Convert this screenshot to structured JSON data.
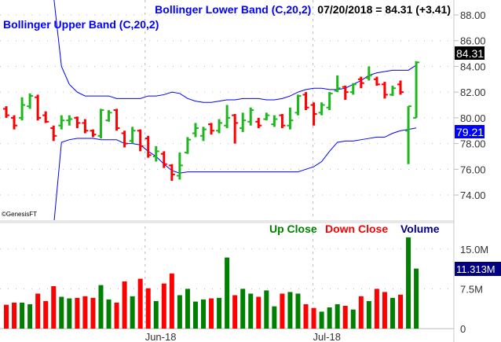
{
  "chart_data": [
    {
      "type": "ohlc",
      "title_lower_band": "Bollinger Lower Band (C,20,2)",
      "title_upper_band": "Bollinger Upper Band (C,20,2)",
      "quote": "07/20/2018 = 84.31 (+3.41)",
      "copyright": "©GenesisFT",
      "ylim": [
        72.5,
        89.2
      ],
      "yticks": [
        "88.00",
        "86.00",
        "84.00",
        "82.00",
        "80.00",
        "78.00",
        "76.00",
        "74.00"
      ],
      "ytick_values": [
        88,
        86,
        84,
        82,
        80,
        78,
        76,
        74
      ],
      "last_price_label": "84.31",
      "last_price": 84.31,
      "lower_band_label": "79.21",
      "lower_band_last": 79.21,
      "colors": {
        "up": "#1db81d",
        "down": "#ff0000",
        "band": "#0000ff"
      },
      "bars": [
        [
          80.7,
          80.9,
          80.0,
          80.2
        ],
        [
          80.0,
          80.2,
          79.1,
          79.4
        ],
        [
          80.0,
          81.6,
          79.8,
          81.0
        ],
        [
          80.9,
          81.9,
          80.7,
          81.7
        ],
        [
          81.6,
          81.8,
          79.8,
          80.0
        ],
        [
          80.2,
          80.5,
          79.6,
          79.7
        ],
        [
          79.2,
          79.4,
          78.2,
          78.6
        ],
        [
          79.4,
          80.2,
          79.1,
          79.8
        ],
        [
          79.8,
          80.2,
          79.4,
          79.9
        ],
        [
          80.0,
          80.1,
          79.2,
          79.6
        ],
        [
          79.6,
          79.9,
          78.8,
          79.0
        ],
        [
          79.0,
          79.1,
          78.5,
          78.7
        ],
        [
          78.6,
          80.7,
          78.4,
          80.6
        ],
        [
          79.8,
          80.6,
          79.7,
          80.4
        ],
        [
          80.6,
          80.7,
          79.0,
          79.2
        ],
        [
          78.8,
          79.0,
          77.7,
          78.0
        ],
        [
          78.2,
          79.3,
          78.0,
          79.0
        ],
        [
          79.0,
          79.1,
          77.4,
          77.8
        ],
        [
          78.4,
          78.6,
          76.9,
          77.1
        ],
        [
          77.0,
          77.8,
          76.6,
          77.4
        ],
        [
          77.2,
          77.4,
          76.1,
          76.4
        ],
        [
          76.3,
          76.4,
          75.1,
          75.6
        ],
        [
          75.5,
          77.3,
          75.2,
          76.3
        ],
        [
          77.3,
          78.5,
          77.2,
          78.3
        ],
        [
          78.8,
          79.6,
          78.5,
          79.2
        ],
        [
          78.6,
          79.3,
          78.2,
          79.1
        ],
        [
          79.5,
          79.6,
          78.7,
          79.0
        ],
        [
          79.0,
          79.9,
          78.8,
          79.6
        ],
        [
          79.4,
          81.0,
          79.2,
          80.0
        ],
        [
          80.2,
          80.3,
          78.0,
          79.6
        ],
        [
          79.2,
          80.4,
          78.9,
          79.8
        ],
        [
          79.7,
          80.8,
          79.4,
          80.6
        ],
        [
          79.7,
          80.0,
          79.2,
          79.4
        ],
        [
          79.9,
          80.4,
          79.8,
          80.2
        ],
        [
          79.5,
          80.2,
          79.3,
          79.9
        ],
        [
          80.2,
          80.3,
          79.2,
          79.4
        ],
        [
          79.4,
          80.8,
          79.1,
          79.8
        ],
        [
          80.4,
          81.8,
          80.2,
          81.7
        ],
        [
          81.8,
          82.0,
          80.6,
          80.8
        ],
        [
          81.0,
          81.2,
          79.4,
          80.3
        ],
        [
          80.4,
          81.2,
          80.2,
          81.0
        ],
        [
          80.8,
          82.0,
          80.6,
          81.9
        ],
        [
          82.1,
          83.3,
          82.0,
          82.3
        ],
        [
          82.4,
          82.5,
          81.4,
          82.0
        ],
        [
          82.0,
          82.7,
          81.8,
          82.6
        ],
        [
          83.0,
          83.2,
          82.3,
          82.7
        ],
        [
          83.1,
          84.0,
          82.9,
          83.3
        ],
        [
          83.0,
          83.2,
          82.5,
          82.6
        ],
        [
          82.6,
          82.8,
          81.5,
          81.8
        ],
        [
          81.8,
          82.5,
          81.7,
          82.3
        ],
        [
          82.6,
          82.9,
          81.8,
          82.0
        ],
        [
          79.0,
          80.9,
          76.4,
          80.9
        ],
        [
          80.0,
          84.4,
          80.0,
          84.31
        ]
      ],
      "up": [
        false,
        false,
        true,
        true,
        false,
        false,
        false,
        true,
        true,
        false,
        false,
        false,
        true,
        true,
        false,
        false,
        true,
        false,
        false,
        true,
        false,
        false,
        true,
        true,
        true,
        true,
        false,
        true,
        true,
        false,
        true,
        true,
        false,
        true,
        true,
        false,
        true,
        true,
        false,
        false,
        true,
        true,
        true,
        false,
        true,
        false,
        true,
        false,
        false,
        true,
        false,
        true,
        true
      ],
      "upper_band": [
        null,
        null,
        null,
        null,
        null,
        null,
        89.5,
        84.0,
        82.6,
        82.0,
        81.7,
        81.7,
        81.7,
        81.7,
        81.5,
        81.5,
        81.5,
        81.5,
        81.7,
        81.7,
        81.8,
        82.0,
        81.9,
        81.5,
        81.3,
        81.2,
        81.2,
        81.3,
        81.4,
        81.4,
        81.5,
        81.5,
        81.5,
        81.4,
        81.4,
        81.5,
        81.7,
        82.0,
        82.2,
        82.3,
        82.3,
        82.2,
        82.2,
        82.3,
        82.6,
        82.9,
        83.3,
        83.5,
        83.6,
        83.7,
        83.7,
        83.7,
        84.1
      ],
      "lower_band": [
        null,
        null,
        null,
        null,
        null,
        null,
        71.5,
        78.1,
        78.3,
        78.4,
        78.4,
        78.4,
        78.3,
        78.3,
        78.3,
        78.0,
        78.0,
        77.9,
        77.4,
        77.0,
        76.4,
        75.9,
        75.7,
        75.8,
        75.8,
        75.8,
        75.8,
        75.8,
        75.8,
        75.8,
        75.8,
        75.8,
        75.8,
        75.8,
        75.8,
        75.8,
        75.8,
        75.8,
        76.0,
        76.2,
        76.6,
        77.4,
        78.1,
        78.2,
        78.2,
        78.3,
        78.4,
        78.5,
        78.5,
        78.8,
        79.0,
        79.1,
        79.21
      ]
    },
    {
      "type": "bar",
      "legend": {
        "up": "Up Close",
        "down": "Down Close",
        "volume": "Volume"
      },
      "ylabel_unit": "M",
      "ylim": [
        0,
        20
      ],
      "yticks": [
        "15.0M",
        "7.5M",
        "0"
      ],
      "ytick_values": [
        15,
        7.5,
        0
      ],
      "last_volume_label": "11.313M",
      "values": [
        4.5,
        4.9,
        4.9,
        4.6,
        6.6,
        5.2,
        8.0,
        6.0,
        5.7,
        5.8,
        6.1,
        5.8,
        8.2,
        5.5,
        4.9,
        8.9,
        6.1,
        9.4,
        7.6,
        5.2,
        8.5,
        10.4,
        6.3,
        7.5,
        5.1,
        5.5,
        5.7,
        5.8,
        13.4,
        6.3,
        7.5,
        6.6,
        6.0,
        7.2,
        4.2,
        6.6,
        6.9,
        6.6,
        4.6,
        3.9,
        3.2,
        4.0,
        4.6,
        4.3,
        3.6,
        6.1,
        5.2,
        7.5,
        6.9,
        5.8,
        6.4,
        17.2,
        11.313
      ],
      "colors": {
        "up": "#008000",
        "down": "#ff0000",
        "volume": "#000080"
      }
    }
  ],
  "xaxis": {
    "labels": [
      "Jun-18",
      "Jul-18"
    ],
    "label_bar_index": [
      17.6,
      38.9
    ]
  }
}
